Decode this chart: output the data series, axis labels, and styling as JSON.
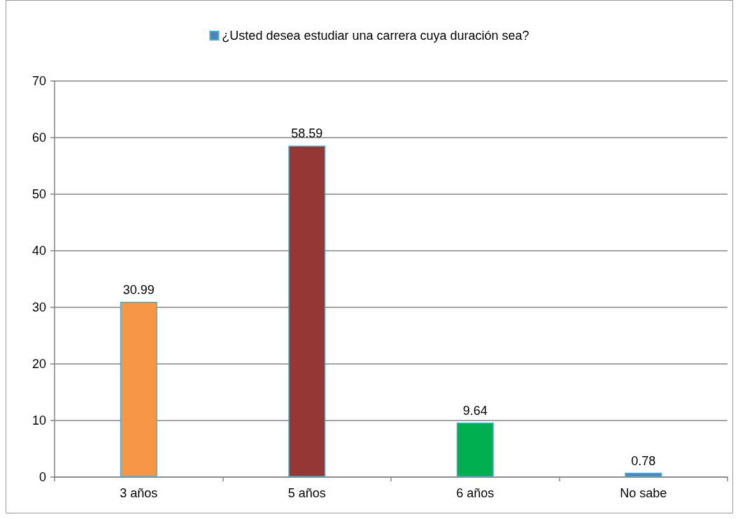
{
  "chart_data": {
    "type": "bar",
    "categories": [
      "3 años",
      "5 años",
      "6 años",
      "No sabe"
    ],
    "series": [
      {
        "name": "¿Usted desea estudiar una carrera cuya duración sea?",
        "color": "#4f81bd",
        "colors": [
          "#f79646",
          "#953735",
          "#00b050",
          "#4f81bd"
        ],
        "values": [
          30.99,
          58.59,
          9.64,
          0.78
        ]
      }
    ],
    "ylim": [
      0,
      70
    ],
    "yticks": [
      0,
      10,
      20,
      30,
      40,
      50,
      60,
      70
    ],
    "grid": "y",
    "legend": "top",
    "data_labels": true
  }
}
